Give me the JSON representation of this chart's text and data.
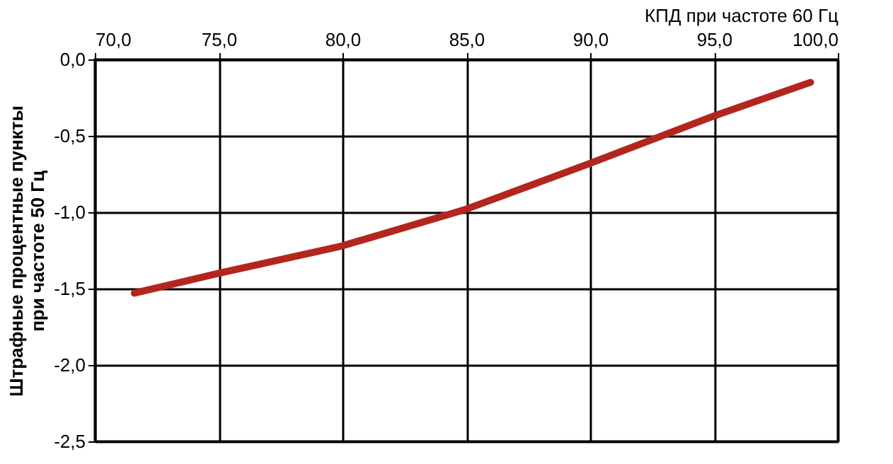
{
  "chart_data": {
    "type": "line",
    "xlabel": "КПД при частоте 60 Гц",
    "ylabel": "Штрафные процентные пункты\nпри частоте 50 Гц",
    "x": [
      71.6,
      75,
      80,
      85,
      90,
      95,
      98.9
    ],
    "series": [
      {
        "color": "#b3261e",
        "values": [
          -1.53,
          -1.4,
          -1.22,
          -0.98,
          -0.68,
          -0.37,
          -0.15
        ]
      }
    ],
    "xlim": [
      70,
      100
    ],
    "ylim": [
      -2.5,
      0
    ],
    "xticks": [
      {
        "value": 70,
        "label": "70,0"
      },
      {
        "value": 75,
        "label": "75,0"
      },
      {
        "value": 80,
        "label": "80,0"
      },
      {
        "value": 85,
        "label": "85,0"
      },
      {
        "value": 90,
        "label": "90,0"
      },
      {
        "value": 95,
        "label": "95,0"
      },
      {
        "value": 100,
        "label": "100,0"
      }
    ],
    "yticks": [
      {
        "value": 0,
        "label": "0,0"
      },
      {
        "value": -0.5,
        "label": "-0,5"
      },
      {
        "value": -1,
        "label": "-1,0"
      },
      {
        "value": -1.5,
        "label": "-1,5"
      },
      {
        "value": -2,
        "label": "-2,0"
      },
      {
        "value": -2.5,
        "label": "-2,5"
      }
    ],
    "grid": true,
    "marker": "none",
    "line_style": "solid"
  }
}
